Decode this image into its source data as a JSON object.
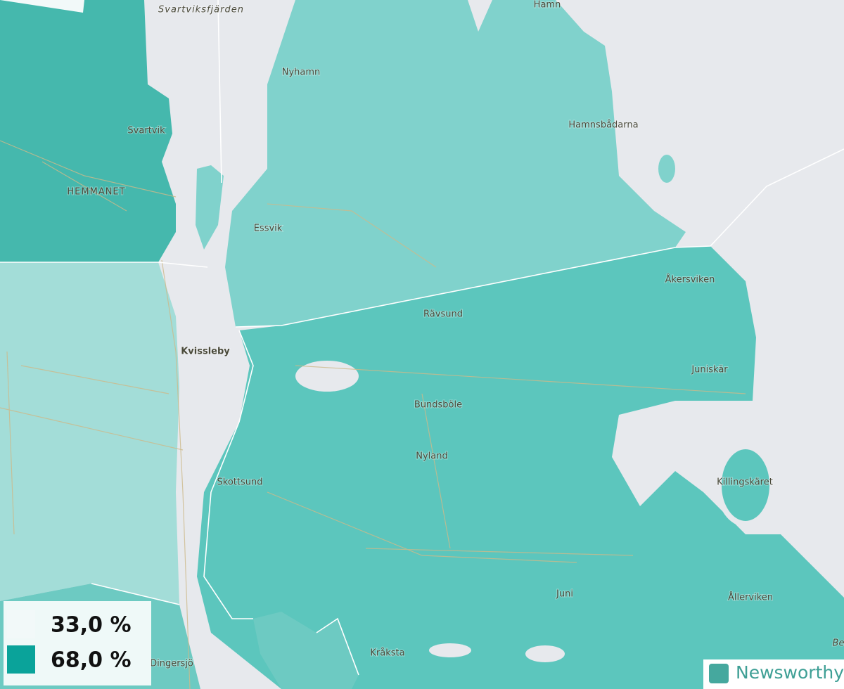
{
  "places": [
    "Svartviksfjärden",
    "Hamn",
    "Nyhamn",
    "Svartvik",
    "Hamnsbådarna",
    "HEMMANET",
    "Essvik",
    "Åkersviken",
    "Rävsund",
    "Kvissleby",
    "Juniskär",
    "Bundsböle",
    "Nyland",
    "Skottsund",
    "Killingskäret",
    "Juni",
    "Ållerviken",
    "Kråksta",
    "Dingersjö",
    "Be"
  ],
  "legend": [
    {
      "label": "33,0 %",
      "color": "#f2f9f9"
    },
    {
      "label": "68,0 %",
      "color": "#0aa39a"
    }
  ],
  "logo": "Newsworthy"
}
